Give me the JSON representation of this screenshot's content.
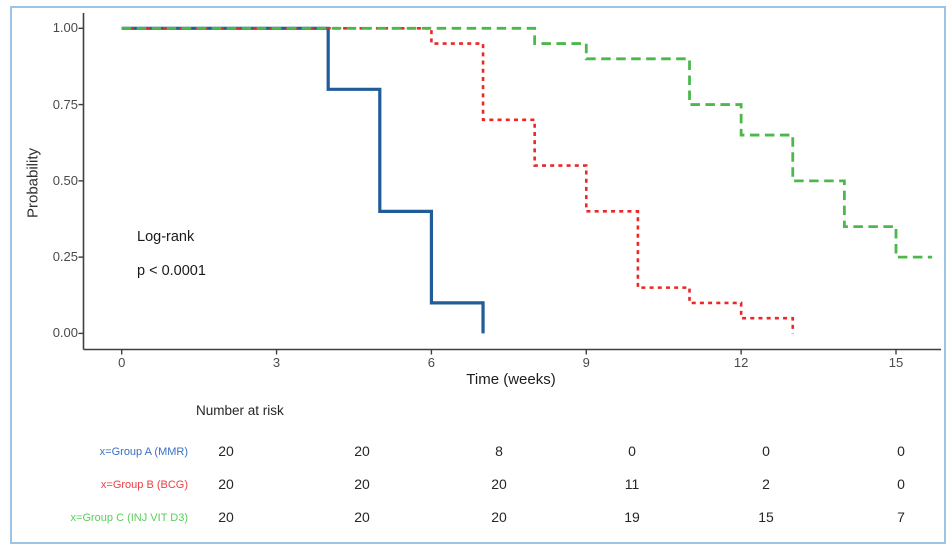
{
  "figure": {
    "border_color": "#9dc3e6",
    "background": "#ffffff"
  },
  "chart_data": {
    "type": "line",
    "subtype": "kaplan-meier-step",
    "title": "",
    "xlabel": "Time (weeks)",
    "ylabel": "Probability",
    "xlim": [
      -0.7,
      15.8
    ],
    "ylim": [
      0,
      1.0
    ],
    "grid": "off",
    "x_ticks": [
      "0",
      "3",
      "6",
      "9",
      "12",
      "15"
    ],
    "x_tick_values": [
      0,
      3,
      6,
      9,
      12,
      15
    ],
    "y_ticks": [
      "0.00",
      "0.25",
      "0.50",
      "0.75",
      "1.00"
    ],
    "y_tick_values": [
      0,
      0.25,
      0.5,
      0.75,
      1.0
    ],
    "axis_color": "#3f3f3f",
    "annotation": {
      "line1": "Log-rank",
      "line2": "p < 0.0001"
    },
    "series": [
      {
        "name": "Group A (MMR)",
        "color": "#1f5c99",
        "style": "solid",
        "start": [
          0,
          1.0
        ],
        "drops": [
          [
            4,
            0.8
          ],
          [
            5,
            0.4
          ],
          [
            6,
            0.1
          ],
          [
            7,
            0.0
          ]
        ],
        "end_time": 7
      },
      {
        "name": "Group B (BCG)",
        "color": "#ec2727",
        "style": "dotted",
        "start": [
          0,
          1.0
        ],
        "drops": [
          [
            6,
            0.95
          ],
          [
            7,
            0.7
          ],
          [
            8,
            0.55
          ],
          [
            9,
            0.4
          ],
          [
            10,
            0.15
          ],
          [
            11,
            0.1
          ],
          [
            12,
            0.05
          ],
          [
            13,
            0.0
          ]
        ],
        "end_time": 13
      },
      {
        "name": "Group C (INJ VIT D3)",
        "color": "#4cb84c",
        "style": "dashed",
        "start": [
          0,
          1.0
        ],
        "drops": [
          [
            8,
            0.95
          ],
          [
            9,
            0.9
          ],
          [
            11,
            0.75
          ],
          [
            12,
            0.65
          ],
          [
            13,
            0.5
          ],
          [
            14,
            0.35
          ],
          [
            15,
            0.25
          ]
        ],
        "end_time": 15.7
      }
    ]
  },
  "risk_table": {
    "header": "Number at risk",
    "rows": [
      {
        "label": "x=Group A (MMR)",
        "color": "#3a6fc4",
        "values": [
          "20",
          "20",
          "8",
          "0",
          "0",
          "0"
        ]
      },
      {
        "label": "x=Group B (BCG)",
        "color": "#e84040",
        "values": [
          "20",
          "20",
          "20",
          "11",
          "2",
          "0"
        ]
      },
      {
        "label": "x=Group C (INJ VIT D3)",
        "color": "#5ace5a",
        "values": [
          "20",
          "20",
          "20",
          "19",
          "15",
          "7"
        ]
      }
    ]
  }
}
